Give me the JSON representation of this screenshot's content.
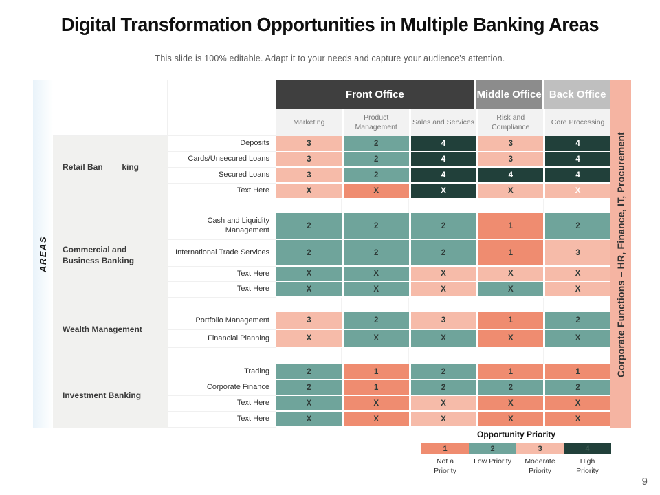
{
  "slide": {
    "title": "Digital Transformation Opportunities in Multiple Banking Areas",
    "subtitle": "This slide is 100% editable. Adapt it to your needs and capture your audience's attention.",
    "page_number": "9"
  },
  "matrix": {
    "left_axis_label": "AREAS",
    "right_axis_label": "Corporate Functions – HR, Finance, IT, Procurement",
    "right_strip_color": "#F5B4A2",
    "office_groups": [
      {
        "label": "Front Office",
        "span": 3,
        "color": "#3f3f3f"
      },
      {
        "label": "Middle Office",
        "span": 1,
        "color": "#8c8c8c"
      },
      {
        "label": "Back Office",
        "span": 1,
        "color": "#bfbfbf"
      }
    ],
    "priority_colors": {
      "1": "#EF8C70",
      "2": "#6FA49B",
      "3": "#F6BBA9",
      "4": "#21403A"
    },
    "cell_text_dark": "#2F3B38",
    "cell_text_light": "#FFFFFF"
  },
  "chart_data": {
    "type": "heatmap",
    "title": "Digital Transformation Opportunities in Multiple Banking Areas",
    "column_groups": [
      {
        "label": "Front Office",
        "columns": [
          "Marketing",
          "Product Management",
          "Sales and Services"
        ]
      },
      {
        "label": "Middle Office",
        "columns": [
          "Risk and Compliance"
        ]
      },
      {
        "label": "Back Office",
        "columns": [
          "Core Processing"
        ]
      }
    ],
    "columns": [
      "Marketing",
      "Product Management",
      "Sales and Services",
      "Risk and Compliance",
      "Core Processing"
    ],
    "scale": {
      "1": "Not a Priority",
      "2": "Low Priority",
      "3": "Moderate Priority",
      "4": "High Priority"
    },
    "row_groups": [
      {
        "group": "Retail Banking",
        "group_display": [
          "Retail Ban",
          "king"
        ],
        "rows": [
          {
            "label": "Deposits",
            "values": [
              "3",
              "2",
              "4",
              "3",
              "4"
            ],
            "priorities": [
              3,
              2,
              4,
              3,
              4
            ]
          },
          {
            "label": "Cards/Unsecured Loans",
            "values": [
              "3",
              "2",
              "4",
              "3",
              "4"
            ],
            "priorities": [
              3,
              2,
              4,
              3,
              4
            ]
          },
          {
            "label": "Secured Loans",
            "values": [
              "3",
              "2",
              "4",
              "4",
              "4"
            ],
            "priorities": [
              3,
              2,
              4,
              4,
              4
            ]
          },
          {
            "label": "Text Here",
            "values": [
              "X",
              "X",
              "X",
              "X",
              "X"
            ],
            "priorities": [
              3,
              1,
              4,
              3,
              3
            ],
            "white_cells": [
              4
            ]
          }
        ]
      },
      {
        "group": "Commercial and Business Banking",
        "rows": [
          {
            "label": "Cash and Liquidity Management",
            "values": [
              "2",
              "2",
              "2",
              "1",
              "2"
            ],
            "priorities": [
              2,
              2,
              2,
              1,
              2
            ]
          },
          {
            "label": "International Trade Services",
            "values": [
              "2",
              "2",
              "2",
              "1",
              "3"
            ],
            "priorities": [
              2,
              2,
              2,
              1,
              3
            ]
          },
          {
            "label": "Text Here",
            "values": [
              "X",
              "X",
              "X",
              "X",
              "X"
            ],
            "priorities": [
              2,
              2,
              3,
              3,
              3
            ]
          },
          {
            "label": "Text Here",
            "values": [
              "X",
              "X",
              "X",
              "X",
              "X"
            ],
            "priorities": [
              2,
              2,
              3,
              2,
              3
            ]
          }
        ]
      },
      {
        "group": "Wealth Management",
        "rows": [
          {
            "label": "Portfolio Management",
            "values": [
              "3",
              "2",
              "3",
              "1",
              "2"
            ],
            "priorities": [
              3,
              2,
              3,
              1,
              2
            ]
          },
          {
            "label": "Financial Planning",
            "values": [
              "X",
              "X",
              "X",
              "X",
              "X"
            ],
            "priorities": [
              3,
              2,
              2,
              1,
              2
            ]
          }
        ]
      },
      {
        "group": "Investment Banking",
        "rows": [
          {
            "label": "Trading",
            "values": [
              "2",
              "1",
              "2",
              "1",
              "1"
            ],
            "priorities": [
              2,
              1,
              2,
              1,
              1
            ]
          },
          {
            "label": "Corporate Finance",
            "values": [
              "2",
              "1",
              "2",
              "2",
              "2"
            ],
            "priorities": [
              2,
              1,
              2,
              2,
              2
            ]
          },
          {
            "label": "Text Here",
            "values": [
              "X",
              "X",
              "X",
              "X",
              "X"
            ],
            "priorities": [
              2,
              1,
              3,
              1,
              1
            ]
          },
          {
            "label": "Text Here",
            "values": [
              "X",
              "X",
              "X",
              "X",
              "X"
            ],
            "priorities": [
              2,
              1,
              3,
              1,
              1
            ]
          }
        ]
      }
    ]
  },
  "legend": {
    "title": "Opportunity Priority",
    "items": [
      {
        "value": "1",
        "label": "Not a Priority",
        "color": "#EF8C70",
        "text_color": "#2F3B38"
      },
      {
        "value": "2",
        "label": "Low Priority",
        "color": "#6FA49B",
        "text_color": "#2F3B38"
      },
      {
        "value": "3",
        "label": "Moderate Priority",
        "color": "#F6BBA9",
        "text_color": "#2F3B38"
      },
      {
        "value": "4",
        "label": "High Priority",
        "color": "#21403A",
        "text_color": "#3E5C53"
      }
    ]
  }
}
